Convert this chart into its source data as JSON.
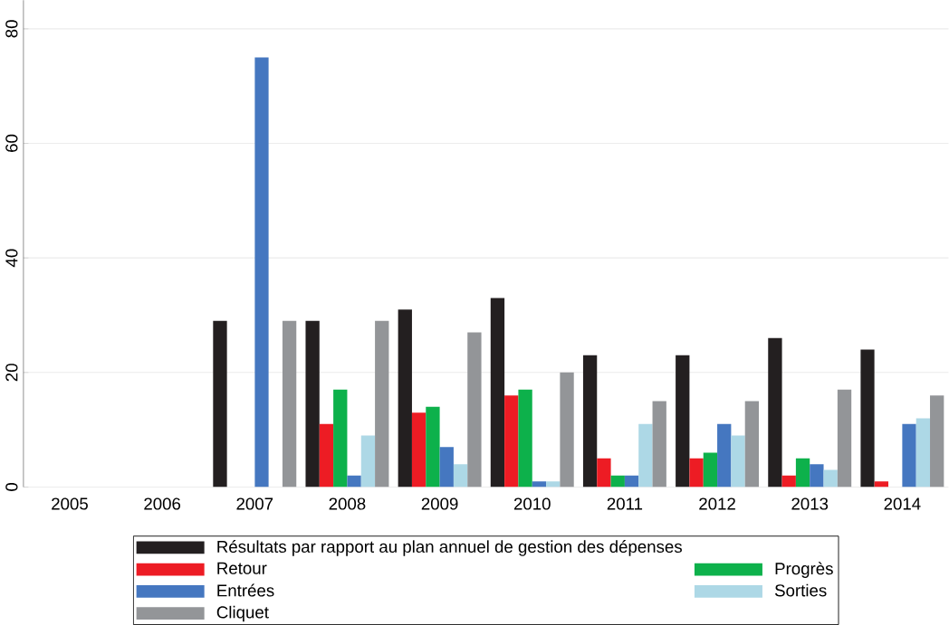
{
  "chart_data": {
    "type": "bar",
    "categories": [
      "2005",
      "2006",
      "2007",
      "2008",
      "2009",
      "2010",
      "2011",
      "2012",
      "2013",
      "2014"
    ],
    "series": [
      {
        "name": "Résultats par rapport au plan annuel de gestion des dépenses",
        "color": "#231f20",
        "values": [
          null,
          null,
          29,
          29,
          31,
          33,
          23,
          23,
          26,
          24
        ]
      },
      {
        "name": "Retour",
        "color": "#ed1c24",
        "values": [
          null,
          null,
          null,
          11,
          13,
          16,
          5,
          5,
          2,
          1
        ]
      },
      {
        "name": "Progrès",
        "color": "#0db14b",
        "values": [
          null,
          null,
          null,
          17,
          14,
          17,
          2,
          6,
          5,
          null
        ]
      },
      {
        "name": "Entrées",
        "color": "#4577c0",
        "values": [
          null,
          null,
          75,
          2,
          7,
          1,
          2,
          11,
          4,
          11
        ]
      },
      {
        "name": "Sorties",
        "color": "#add8e6",
        "values": [
          null,
          null,
          null,
          9,
          4,
          1,
          11,
          9,
          3,
          12
        ]
      },
      {
        "name": "Cliquet",
        "color": "#939598",
        "values": [
          null,
          null,
          29,
          29,
          27,
          20,
          15,
          15,
          17,
          16
        ]
      }
    ],
    "ylim": [
      0,
      85
    ],
    "yticks": [
      0,
      20,
      40,
      60,
      80
    ],
    "grid": "y",
    "legend": "bottom"
  }
}
